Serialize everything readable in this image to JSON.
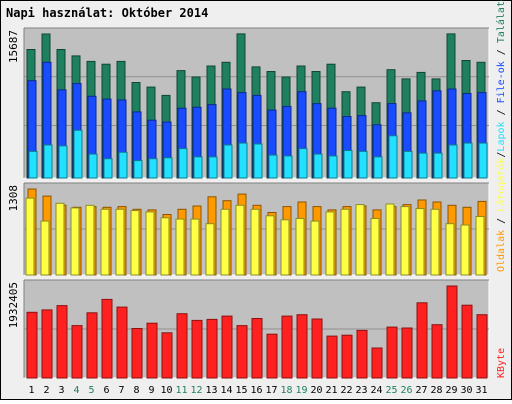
{
  "title": "Napi használat: Október 2014",
  "colors": {
    "title": "#0000b8",
    "frame_bg": "#efefef",
    "panel_bg": "#c0c0c0",
    "talalatok": "#1f8060",
    "fileok": "#1a4cff",
    "lapok": "#22e0ff",
    "latogatok": "#ff9900",
    "oldalak": "#ffff44",
    "kbyte": "#ff2020",
    "weekend_label": "#208060",
    "weekday_label": "#000000",
    "grid": "#909090"
  },
  "right_labels": {
    "talalatok": "Találatok",
    "fileok": "File-ok",
    "lapok": "Lapok",
    "latogatok": "Látogatók",
    "oldalak": "Oldalak",
    "kbyte": "KByte",
    "separator": "/"
  },
  "chart_data": [
    {
      "type": "bar",
      "name": "top",
      "ymax_label": "15687",
      "ylim": [
        0,
        15687
      ],
      "categories": [
        "1",
        "2",
        "3",
        "4",
        "5",
        "6",
        "7",
        "8",
        "9",
        "10",
        "11",
        "12",
        "13",
        "14",
        "15",
        "16",
        "17",
        "18",
        "19",
        "20",
        "21",
        "22",
        "23",
        "24",
        "25",
        "26",
        "27",
        "28",
        "29",
        "30",
        "31"
      ],
      "weekend": [
        "4",
        "5",
        "11",
        "12",
        "18",
        "19",
        "25",
        "26"
      ],
      "series": [
        {
          "name": "Találatok",
          "values": [
            14000,
            15687,
            14000,
            13300,
            12700,
            12400,
            12700,
            10400,
            9900,
            9000,
            11700,
            11000,
            12200,
            12600,
            15700,
            12100,
            11600,
            11000,
            12200,
            11600,
            12400,
            9400,
            9900,
            8200,
            11800,
            10800,
            11500,
            10800,
            15700,
            12800,
            12600
          ]
        },
        {
          "name": "File-ok",
          "values": [
            10600,
            12600,
            9600,
            10300,
            8900,
            8600,
            8500,
            7200,
            6300,
            6100,
            7600,
            7700,
            8000,
            9700,
            9300,
            9000,
            7400,
            7800,
            9400,
            8100,
            7600,
            6700,
            6800,
            5800,
            8100,
            7100,
            8400,
            9500,
            9700,
            9200,
            9300
          ]
        },
        {
          "name": "Lapok",
          "values": [
            2900,
            3600,
            3500,
            5200,
            2600,
            2100,
            2800,
            1900,
            2100,
            2200,
            3200,
            2300,
            2300,
            3600,
            3800,
            3700,
            2500,
            2400,
            3200,
            2600,
            2400,
            3000,
            2900,
            2300,
            4600,
            2900,
            2700,
            2700,
            3600,
            3800,
            3800
          ]
        }
      ]
    },
    {
      "type": "bar",
      "name": "middle",
      "ymax_label": "1308",
      "ylim": [
        0,
        1308
      ],
      "series": [
        {
          "name": "Látogatók",
          "values": [
            1308,
            1200,
            1060,
            1030,
            1040,
            1030,
            1040,
            1000,
            990,
            920,
            1000,
            1050,
            1190,
            1130,
            1230,
            1060,
            950,
            1040,
            1110,
            1040,
            990,
            1040,
            1050,
            990,
            1040,
            1070,
            1140,
            1110,
            1060,
            1030,
            1120
          ]
        },
        {
          "name": "Oldalak",
          "values": [
            1170,
            820,
            1090,
            1020,
            1060,
            1000,
            1000,
            980,
            960,
            870,
            850,
            850,
            780,
            1000,
            1060,
            1000,
            900,
            840,
            860,
            820,
            960,
            1000,
            1070,
            860,
            1080,
            1040,
            1010,
            1000,
            780,
            760,
            890
          ]
        }
      ]
    },
    {
      "type": "bar",
      "name": "bottom",
      "ymax_label": "1932405",
      "ylim": [
        0,
        1932405
      ],
      "series": [
        {
          "name": "KByte",
          "values": [
            1380000,
            1430000,
            1520000,
            1100000,
            1370000,
            1650000,
            1490000,
            1040000,
            1150000,
            950000,
            1350000,
            1210000,
            1230000,
            1300000,
            1100000,
            1250000,
            920000,
            1300000,
            1330000,
            1240000,
            880000,
            900000,
            1000000,
            630000,
            1070000,
            1050000,
            1580000,
            1120000,
            1932405,
            1530000,
            1330000
          ]
        }
      ]
    }
  ]
}
